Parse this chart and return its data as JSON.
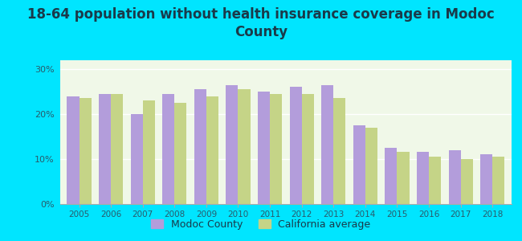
{
  "title": "18-64 population without health insurance coverage in Modoc\nCounty",
  "years": [
    2005,
    2006,
    2007,
    2008,
    2009,
    2010,
    2011,
    2012,
    2013,
    2014,
    2015,
    2016,
    2017,
    2018
  ],
  "modoc": [
    24.0,
    24.5,
    20.0,
    24.5,
    25.5,
    26.5,
    25.0,
    26.0,
    26.5,
    17.5,
    12.5,
    11.5,
    12.0,
    11.0
  ],
  "california": [
    23.5,
    24.5,
    23.0,
    22.5,
    24.0,
    25.5,
    24.5,
    24.5,
    23.5,
    17.0,
    11.5,
    10.5,
    10.0,
    10.5
  ],
  "modoc_color": "#b39ddb",
  "california_color": "#c5d487",
  "bg_outer": "#00e5ff",
  "bg_plot": "#f0f8e8",
  "ylim": [
    0,
    32
  ],
  "yticks": [
    0,
    10,
    20,
    30
  ],
  "ytick_labels": [
    "0%",
    "10%",
    "20%",
    "30%"
  ],
  "title_fontsize": 12,
  "legend_label_modoc": "Modoc County",
  "legend_label_ca": "California average"
}
